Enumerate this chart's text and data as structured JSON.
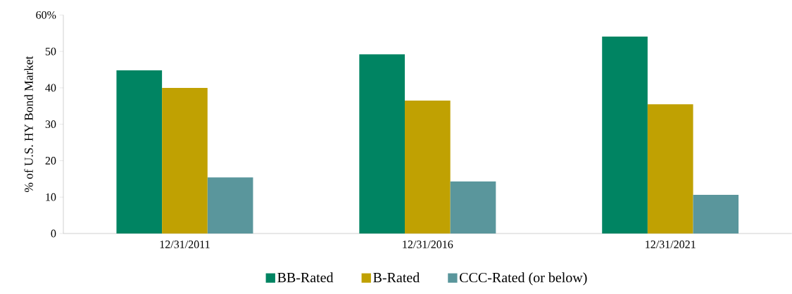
{
  "chart_data": {
    "type": "bar",
    "ylabel": "% of U.S. HY Bond Market",
    "categories": [
      "12/31/2011",
      "12/31/2016",
      "12/31/2021"
    ],
    "series": [
      {
        "name": "BB-Rated",
        "color": "#008462",
        "values": [
          44.8,
          49.2,
          54.1
        ]
      },
      {
        "name": "B-Rated",
        "color": "#c0a102",
        "values": [
          40.0,
          36.5,
          35.5
        ]
      },
      {
        "name": "CCC-Rated (or below)",
        "color": "#5a969c",
        "values": [
          15.4,
          14.3,
          10.6
        ]
      }
    ],
    "ylim": [
      0,
      60
    ],
    "yticks": [
      0,
      10,
      20,
      30,
      40,
      50,
      {
        "value": 60,
        "label": "60%"
      }
    ],
    "legend": "bottom"
  }
}
